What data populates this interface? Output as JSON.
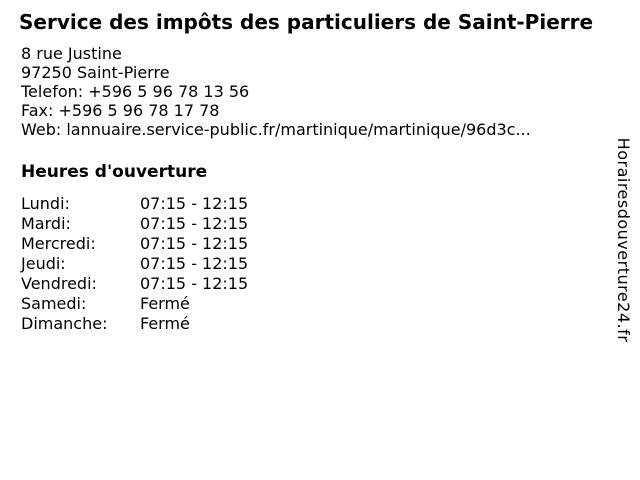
{
  "page": {
    "background_color": "#ffffff",
    "text_color": "#000000"
  },
  "header": {
    "title": "Service des impôts des particuliers de Saint-Pierre"
  },
  "contact": {
    "address_line1": "8 rue Justine",
    "address_line2": "97250 Saint-Pierre",
    "phone_line": "Telefon: +596 5 96 78 13 56",
    "fax_line": "Fax: +596 5 96 78 17 78",
    "web_line": "Web: lannuaire.service-public.fr/martinique/martinique/96d3c..."
  },
  "opening_hours": {
    "heading": "Heures d'ouverture",
    "rows": [
      {
        "day": "Lundi:",
        "hours": "07:15 - 12:15"
      },
      {
        "day": "Mardi:",
        "hours": "07:15 - 12:15"
      },
      {
        "day": "Mercredi:",
        "hours": "07:15 - 12:15"
      },
      {
        "day": "Jeudi:",
        "hours": "07:15 - 12:15"
      },
      {
        "day": "Vendredi:",
        "hours": "07:15 - 12:15"
      },
      {
        "day": "Samedi:",
        "hours": "Fermé"
      },
      {
        "day": "Dimanche:",
        "hours": "Fermé"
      }
    ]
  },
  "watermark": {
    "text": "Horairesdouverture24.fr"
  }
}
